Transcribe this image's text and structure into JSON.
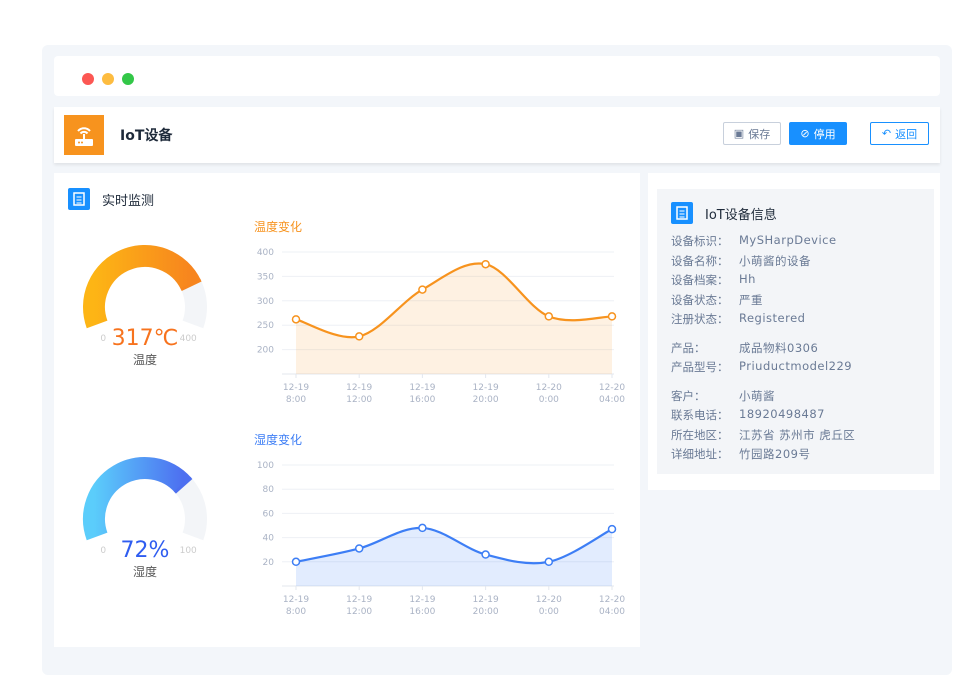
{
  "window": {
    "dots": [
      "#fc5753",
      "#fdbc40",
      "#33c748"
    ]
  },
  "header": {
    "title": "IoT设备",
    "save_label": "保存",
    "disable_label": "停用",
    "back_label": "返回"
  },
  "monitor": {
    "title": "实时监测",
    "temp_gauge": {
      "value": 317,
      "display": "317℃",
      "label": "温度",
      "min": "0",
      "max": "400",
      "color": "#f7931e"
    },
    "humid_gauge": {
      "value": 72,
      "display": "72%",
      "label": "湿度",
      "min": "0",
      "max": "100",
      "color": "#3d7ef5"
    }
  },
  "info": {
    "title": "IoT设备信息",
    "groups": [
      [
        {
          "k": "设备标识：",
          "v": "MySHarpDevice"
        },
        {
          "k": "设备名称：",
          "v": "小萌酱的设备"
        },
        {
          "k": "设备档案：",
          "v": "Hh"
        },
        {
          "k": "设备状态：",
          "v": "严重"
        },
        {
          "k": "注册状态：",
          "v": "Registered"
        }
      ],
      [
        {
          "k": "产品：",
          "v": "成品物料0306"
        },
        {
          "k": "产品型号：",
          "v": "Priuductmodel229"
        }
      ],
      [
        {
          "k": "客户：",
          "v": "小萌酱"
        },
        {
          "k": "联系电话：",
          "v": "18920498487"
        },
        {
          "k": "所在地区：",
          "v": "江苏省 苏州市 虎丘区"
        },
        {
          "k": "详细地址：",
          "v": "竹园路209号"
        }
      ]
    ]
  },
  "chart_data": [
    {
      "type": "area",
      "title": "温度变化",
      "categories": [
        "12-19\n8:00",
        "12-19\n12:00",
        "12-19\n16:00",
        "12-19\n20:00",
        "12-20\n0:00",
        "12-20\n04:00"
      ],
      "values": [
        262,
        227,
        323,
        375,
        268,
        268
      ],
      "yticks": [
        200,
        250,
        300,
        350,
        400
      ],
      "ylim": [
        150,
        400
      ],
      "color": "#f7931e",
      "grid": true
    },
    {
      "type": "area",
      "title": "湿度变化",
      "categories": [
        "12-19\n8:00",
        "12-19\n12:00",
        "12-19\n16:00",
        "12-19\n20:00",
        "12-20\n0:00",
        "12-20\n04:00"
      ],
      "values": [
        20,
        31,
        48,
        26,
        20,
        47
      ],
      "yticks": [
        20,
        40,
        60,
        80,
        100
      ],
      "ylim": [
        0,
        100
      ],
      "color": "#3d7ef5",
      "grid": true
    }
  ]
}
